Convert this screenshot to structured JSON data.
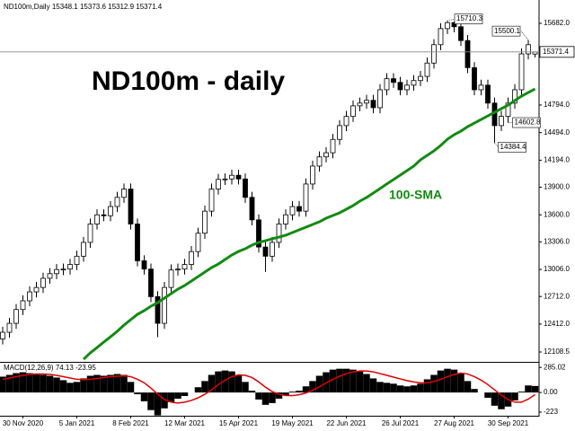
{
  "chart_data": [
    {
      "type": "candlestick",
      "symbol": "ND100m,Daily",
      "title": "ND100m - daily",
      "categories": [
        null,
        null,
        null,
        "30 Nov 2020",
        null,
        null,
        null,
        null,
        null,
        null,
        null,
        "5 Jan 2021",
        null,
        null,
        null,
        null,
        null,
        null,
        null,
        "8 Feb 2021",
        null,
        null,
        null,
        null,
        null,
        null,
        null,
        "12 Mar 2021",
        null,
        null,
        null,
        null,
        null,
        null,
        null,
        "15 Apr 2021",
        null,
        null,
        null,
        null,
        null,
        null,
        null,
        "19 May 2021",
        null,
        null,
        null,
        null,
        null,
        null,
        null,
        "22 Jun 2021",
        null,
        null,
        null,
        null,
        null,
        null,
        null,
        "26 Jul 2021",
        null,
        null,
        null,
        null,
        null,
        null,
        null,
        "27 Aug 2021",
        null,
        null,
        null,
        null,
        null,
        null,
        null,
        "30 Sep 2021",
        null,
        null,
        null,
        null
      ],
      "open": [
        12250,
        12323,
        12420,
        12570,
        12665,
        12762,
        12810,
        12910,
        12960,
        13005,
        13010,
        13060,
        13150,
        13300,
        13500,
        13600,
        13590,
        13690,
        13790,
        13880,
        13500,
        13100,
        13010,
        12710,
        12420,
        12810,
        13000,
        13010,
        13060,
        13200,
        13400,
        13640,
        13880,
        13985,
        13990,
        14030,
        13990,
        13790,
        13545,
        13250,
        13150,
        13300,
        13500,
        13600,
        13690,
        13640,
        13935,
        14130,
        14230,
        14275,
        14420,
        14570,
        14670,
        14785,
        14815,
        14845,
        14765,
        14960,
        15080,
        15040,
        14960,
        15010,
        15060,
        15105,
        15250,
        15450,
        15625,
        15690,
        15645,
        15495,
        15200,
        14960,
        15010,
        14815,
        14570,
        14670,
        14815,
        14960,
        15350,
        15348.1
      ],
      "high": [
        12383,
        12480,
        12630,
        12725,
        12822,
        12870,
        12970,
        13020,
        13065,
        13070,
        13120,
        13210,
        13360,
        13560,
        13660,
        13660,
        13750,
        13850,
        13940,
        13940,
        13560,
        13160,
        13070,
        12770,
        12870,
        13060,
        13070,
        13120,
        13260,
        13460,
        13700,
        13940,
        14045,
        14050,
        14090,
        14090,
        14050,
        13850,
        13605,
        13310,
        13360,
        13560,
        13660,
        13750,
        13750,
        13995,
        14190,
        14290,
        14335,
        14480,
        14630,
        14730,
        14845,
        14875,
        14905,
        14905,
        15020,
        15140,
        15140,
        15100,
        15070,
        15120,
        15165,
        15310,
        15510,
        15685,
        15710.3,
        15700,
        15680,
        15555,
        15260,
        15070,
        15070,
        14875,
        14730,
        14875,
        15020,
        15410,
        15500.1,
        15373.6
      ],
      "low": [
        12190,
        12263,
        12360,
        12510,
        12605,
        12702,
        12750,
        12850,
        12900,
        12945,
        12950,
        13000,
        13090,
        13240,
        13440,
        13530,
        13530,
        13630,
        13730,
        13440,
        13040,
        12950,
        12650,
        12270,
        12360,
        12750,
        12940,
        12950,
        13000,
        13140,
        13340,
        13580,
        13820,
        13925,
        13930,
        13930,
        13730,
        13485,
        13190,
        12980,
        13090,
        13240,
        13440,
        13540,
        13580,
        13580,
        13875,
        14070,
        14170,
        14215,
        14360,
        14510,
        14610,
        14725,
        14755,
        14705,
        14705,
        14900,
        14980,
        14900,
        14900,
        14950,
        15000,
        15045,
        15190,
        15390,
        15565,
        15585,
        15435,
        15140,
        14900,
        14900,
        14755,
        14384.4,
        14510,
        14602.8,
        14755,
        14900,
        15290,
        15312.9
      ],
      "close": [
        12323,
        12420,
        12570,
        12665,
        12762,
        12810,
        12910,
        12960,
        13005,
        13010,
        13060,
        13150,
        13300,
        13500,
        13600,
        13590,
        13690,
        13790,
        13880,
        13500,
        13100,
        13010,
        12710,
        12420,
        12810,
        13000,
        13010,
        13060,
        13200,
        13400,
        13640,
        13880,
        13985,
        13990,
        14030,
        13990,
        13790,
        13545,
        13250,
        13150,
        13300,
        13500,
        13600,
        13690,
        13640,
        13935,
        14130,
        14230,
        14275,
        14420,
        14570,
        14670,
        14785,
        14815,
        14845,
        14765,
        14960,
        15080,
        15040,
        14960,
        15010,
        15060,
        15105,
        15250,
        15450,
        15625,
        15690,
        15645,
        15495,
        15200,
        14960,
        15010,
        14815,
        14570,
        14670,
        14815,
        14960,
        15350,
        15450,
        15371.4
      ],
      "sma": {
        "name": "100-SMA",
        "color": "#138a13",
        "values": [
          null,
          null,
          null,
          null,
          null,
          null,
          null,
          null,
          null,
          null,
          null,
          null,
          12030,
          12099,
          12157,
          12216,
          12274,
          12333,
          12401,
          12460,
          12518,
          12558,
          12606,
          12645,
          12694,
          12743,
          12792,
          12831,
          12880,
          12929,
          12977,
          13026,
          13065,
          13114,
          13163,
          13202,
          13231,
          13270,
          13300,
          13319,
          13339,
          13358,
          13378,
          13407,
          13436,
          13466,
          13495,
          13524,
          13563,
          13593,
          13622,
          13661,
          13700,
          13749,
          13788,
          13837,
          13886,
          13935,
          13983,
          14032,
          14081,
          14130,
          14198,
          14247,
          14295,
          14354,
          14422,
          14471,
          14510,
          14559,
          14598,
          14637,
          14676,
          14715,
          14754,
          14793,
          14842,
          14891,
          14930,
          14969
        ]
      },
      "ylim": [
        12001,
        15936
      ],
      "yticks": [
        {
          "value": 15682,
          "label": "15682.0"
        },
        {
          "value": 14794,
          "label": "14794.0"
        },
        {
          "value": 14494,
          "label": "14494.0"
        },
        {
          "value": 14194,
          "label": "14194.0"
        },
        {
          "value": 13900,
          "label": "13900.0"
        },
        {
          "value": 13600,
          "label": "13600.0"
        },
        {
          "value": 13306,
          "label": "13306.0"
        },
        {
          "value": 13006,
          "label": "13006.0"
        },
        {
          "value": 12712,
          "label": "12712.0"
        },
        {
          "value": 12412,
          "label": "12412.0"
        },
        {
          "value": 12108.5,
          "label": "12108.5"
        }
      ],
      "grid": false
    },
    {
      "type": "macd",
      "name": "MACD(12,26,9)",
      "series": [
        {
          "name": "MACD",
          "color": "#000000",
          "values": [
            180,
            200,
            220,
            230,
            220,
            210,
            200,
            190,
            170,
            140,
            110,
            120,
            160,
            190,
            200,
            190,
            200,
            210,
            200,
            120,
            -20,
            -100,
            -200,
            -260,
            -180,
            -110,
            -70,
            -40,
            0,
            60,
            130,
            200,
            240,
            250,
            240,
            200,
            120,
            20,
            -80,
            -140,
            -120,
            -70,
            -30,
            10,
            20,
            70,
            130,
            190,
            230,
            260,
            270,
            270,
            260,
            240,
            210,
            160,
            120,
            110,
            100,
            80,
            70,
            80,
            100,
            150,
            200,
            250,
            270,
            260,
            220,
            130,
            40,
            0,
            -60,
            -150,
            -190,
            -160,
            -90,
            10,
            80,
            74.13
          ]
        },
        {
          "name": "Signal",
          "color": "#e00000",
          "values": [
            150,
            165,
            180,
            195,
            205,
            210,
            210,
            205,
            195,
            180,
            165,
            150,
            145,
            150,
            160,
            170,
            180,
            185,
            190,
            180,
            150,
            110,
            50,
            -20,
            -80,
            -110,
            -120,
            -110,
            -90,
            -60,
            -20,
            30,
            90,
            140,
            180,
            200,
            195,
            170,
            120,
            60,
            10,
            -20,
            -35,
            -35,
            -25,
            -5,
            25,
            65,
            110,
            150,
            185,
            215,
            235,
            245,
            245,
            235,
            215,
            195,
            175,
            155,
            135,
            120,
            110,
            110,
            125,
            150,
            180,
            205,
            220,
            210,
            180,
            140,
            90,
            30,
            -30,
            -80,
            -110,
            -110,
            -75,
            -23.95
          ]
        }
      ],
      "ylim": [
        -264,
        338
      ],
      "yticks": [
        285.02,
        {
          "value": 0,
          "label": "0.00"
        },
        -223
      ]
    }
  ]
}
